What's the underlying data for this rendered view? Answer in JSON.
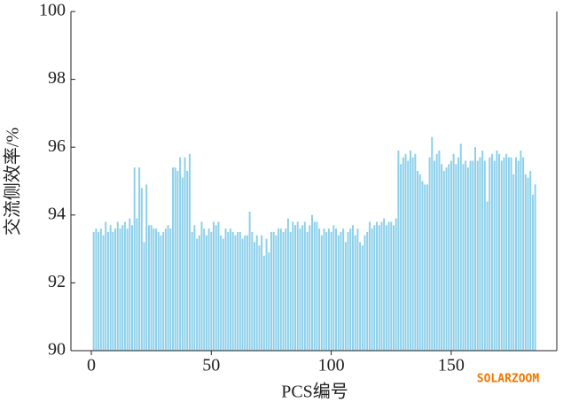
{
  "chart_data": {
    "type": "bar",
    "x_label": "PCS编号",
    "y_label": "交流侧效率/%",
    "watermark": "SOLARZOOM",
    "color": "#8dd0ea",
    "x": [
      1,
      2,
      3,
      4,
      5,
      6,
      7,
      8,
      9,
      10,
      11,
      12,
      13,
      14,
      15,
      16,
      17,
      18,
      19,
      20,
      21,
      22,
      23,
      24,
      25,
      26,
      27,
      28,
      29,
      30,
      31,
      32,
      33,
      34,
      35,
      36,
      37,
      38,
      39,
      40,
      41,
      42,
      43,
      44,
      45,
      46,
      47,
      48,
      49,
      50,
      51,
      52,
      53,
      54,
      55,
      56,
      57,
      58,
      59,
      60,
      61,
      62,
      63,
      64,
      65,
      66,
      67,
      68,
      69,
      70,
      71,
      72,
      73,
      74,
      75,
      76,
      77,
      78,
      79,
      80,
      81,
      82,
      83,
      84,
      85,
      86,
      87,
      88,
      89,
      90,
      91,
      92,
      93,
      94,
      95,
      96,
      97,
      98,
      99,
      100,
      101,
      102,
      103,
      104,
      105,
      106,
      107,
      108,
      109,
      110,
      111,
      112,
      113,
      114,
      115,
      116,
      117,
      118,
      119,
      120,
      121,
      122,
      123,
      124,
      125,
      126,
      127,
      128,
      129,
      130,
      131,
      132,
      133,
      134,
      135,
      136,
      137,
      138,
      139,
      140,
      141,
      142,
      143,
      144,
      145,
      146,
      147,
      148,
      149,
      150,
      151,
      152,
      153,
      154,
      155,
      156,
      157,
      158,
      159,
      160,
      161,
      162,
      163,
      164,
      165,
      166,
      167,
      168,
      169,
      170,
      171,
      172,
      173,
      174,
      175,
      176,
      177,
      178,
      179,
      180,
      181,
      182,
      183,
      184,
      185
    ],
    "values": [
      93.5,
      93.6,
      93.5,
      93.6,
      93.4,
      93.8,
      93.5,
      93.7,
      93.5,
      93.6,
      93.8,
      93.6,
      93.7,
      93.8,
      93.6,
      93.9,
      93.7,
      95.4,
      93.9,
      95.4,
      94.8,
      93.2,
      94.9,
      93.7,
      93.7,
      93.6,
      93.6,
      93.5,
      93.4,
      93.5,
      93.6,
      93.7,
      93.6,
      95.4,
      95.4,
      95.3,
      95.7,
      95.1,
      95.7,
      95.3,
      95.8,
      93.5,
      93.7,
      93.3,
      93.4,
      93.8,
      93.6,
      93.4,
      93.6,
      93.5,
      93.8,
      93.7,
      93.8,
      93.4,
      93.3,
      93.6,
      93.5,
      93.6,
      93.5,
      93.4,
      93.5,
      93.5,
      93.3,
      93.4,
      93.4,
      94.1,
      93.5,
      93.2,
      93.4,
      93.1,
      93.4,
      92.8,
      93.3,
      92.9,
      93.5,
      93.5,
      93.4,
      93.6,
      93.6,
      93.5,
      93.6,
      93.9,
      93.5,
      93.8,
      93.7,
      93.8,
      93.6,
      93.7,
      93.8,
      93.5,
      93.7,
      94.0,
      93.8,
      93.8,
      93.6,
      93.4,
      93.6,
      93.5,
      93.6,
      93.5,
      93.7,
      93.6,
      93.4,
      93.5,
      93.6,
      93.2,
      93.5,
      93.6,
      93.7,
      93.4,
      93.6,
      93.2,
      93.1,
      93.4,
      93.5,
      93.8,
      93.6,
      93.7,
      93.8,
      93.7,
      93.8,
      93.9,
      93.7,
      93.8,
      93.8,
      93.7,
      93.9,
      95.9,
      95.5,
      95.7,
      95.8,
      95.6,
      95.9,
      95.7,
      95.8,
      95.3,
      95.2,
      95.0,
      94.9,
      94.9,
      95.7,
      96.3,
      95.6,
      95.8,
      95.9,
      95.5,
      95.3,
      95.4,
      95.5,
      95.6,
      95.8,
      95.5,
      95.7,
      96.1,
      95.5,
      95.6,
      95.4,
      95.6,
      95.6,
      96.0,
      95.6,
      95.7,
      95.9,
      95.6,
      94.4,
      95.7,
      95.8,
      95.6,
      95.9,
      95.8,
      95.6,
      95.7,
      95.8,
      95.7,
      95.7,
      95.2,
      95.7,
      95.6,
      95.9,
      95.7,
      95.2,
      95.1,
      95.3,
      94.6,
      94.9
    ],
    "xlim": [
      -8.5,
      194
    ],
    "xticks": [
      0,
      50,
      100,
      150
    ],
    "ylim": [
      90,
      100
    ],
    "yticks": [
      90,
      92,
      94,
      96,
      98,
      100
    ]
  }
}
